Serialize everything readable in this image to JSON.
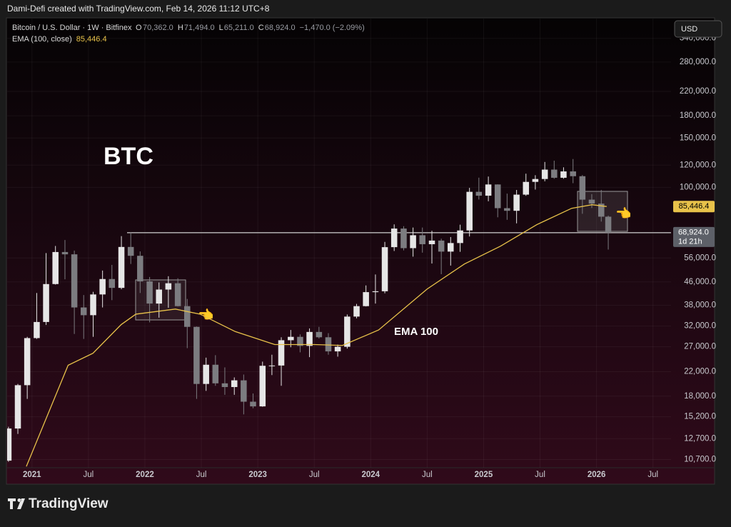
{
  "header": "Dami-Defi created with TradingView.com, Feb 14, 2026 11:12 UTC+8",
  "footer": "TradingView",
  "chart_data": {
    "type": "candlestick",
    "title": "BTC",
    "symbol": "Bitcoin / U.S. Dollar · 1W · Bitfinex",
    "ohlc_legend": [
      {
        "label": "O",
        "value": "70,362.0"
      },
      {
        "label": "H",
        "value": "71,494.0"
      },
      {
        "label": "L",
        "value": "65,211.0"
      },
      {
        "label": "C",
        "value": "68,924.0"
      }
    ],
    "change": "−1,470.0 (−2.09%)",
    "currency": "USD",
    "up_color": "#e6e6e6",
    "down_color": "#7c7c80",
    "x": [
      2020.792,
      2020.875,
      2020.958,
      2021.042,
      2021.125,
      2021.208,
      2021.292,
      2021.375,
      2021.458,
      2021.542,
      2021.625,
      2021.708,
      2021.792,
      2021.875,
      2021.958,
      2022.042,
      2022.125,
      2022.208,
      2022.292,
      2022.375,
      2022.458,
      2022.542,
      2022.625,
      2022.708,
      2022.792,
      2022.875,
      2022.958,
      2023.042,
      2023.125,
      2023.208,
      2023.292,
      2023.375,
      2023.458,
      2023.542,
      2023.625,
      2023.708,
      2023.792,
      2023.875,
      2023.958,
      2024.042,
      2024.125,
      2024.208,
      2024.292,
      2024.375,
      2024.458,
      2024.542,
      2024.625,
      2024.708,
      2024.792,
      2024.875,
      2024.958,
      2025.042,
      2025.125,
      2025.208,
      2025.292,
      2025.375,
      2025.458,
      2025.542,
      2025.625,
      2025.708,
      2025.792,
      2025.875,
      2025.958,
      2026.042,
      2026.104
    ],
    "open": [
      10600,
      13800,
      19700,
      29000,
      33100,
      45200,
      58800,
      57700,
      37300,
      35000,
      41500,
      47100,
      43800,
      61300,
      57000,
      46200,
      38500,
      43200,
      45500,
      37700,
      31800,
      19900,
      23300,
      20000,
      19400,
      20500,
      17200,
      16550,
      23100,
      23150,
      28500,
      29300,
      27200,
      30500,
      29200,
      26000,
      27000,
      34600,
      37700,
      42300,
      42600,
      61200,
      71300,
      60700,
      67500,
      62700,
      64600,
      59000,
      63300,
      70200,
      96400,
      93400,
      102400,
      84300,
      82500,
      94200,
      104600,
      107100,
      115700,
      108200,
      114000,
      109600,
      90400,
      87500,
      78600
    ],
    "high": [
      14000,
      19900,
      29300,
      42000,
      58300,
      61800,
      64900,
      59500,
      41300,
      42400,
      50500,
      52900,
      67000,
      69000,
      59100,
      47900,
      45800,
      48200,
      47400,
      40000,
      31900,
      24700,
      25200,
      22800,
      21000,
      21500,
      18400,
      23900,
      25300,
      29200,
      31000,
      29900,
      31400,
      31800,
      30200,
      27500,
      35200,
      38400,
      44700,
      48900,
      63900,
      73800,
      72700,
      71900,
      71900,
      70000,
      65600,
      66500,
      73600,
      99600,
      108300,
      109300,
      102500,
      95000,
      97900,
      111900,
      110500,
      123200,
      124500,
      117900,
      126200,
      110600,
      94600,
      97900,
      79300
    ],
    "low": [
      10500,
      13200,
      17600,
      28800,
      32300,
      45000,
      47000,
      30000,
      28800,
      29300,
      37300,
      39600,
      43300,
      53300,
      42000,
      33000,
      34300,
      37200,
      37600,
      26700,
      17600,
      18800,
      19600,
      18200,
      18200,
      15500,
      16300,
      16500,
      21400,
      19600,
      26900,
      25800,
      24800,
      28900,
      25300,
      24900,
      26600,
      34100,
      37600,
      38500,
      41900,
      59300,
      59600,
      56600,
      58500,
      53500,
      49000,
      52600,
      58900,
      66800,
      90500,
      89200,
      78200,
      76600,
      74400,
      93300,
      98200,
      105100,
      107300,
      107300,
      103500,
      80500,
      84400,
      75500,
      60000
    ],
    "close": [
      13800,
      19700,
      29000,
      33100,
      45200,
      58800,
      57700,
      37300,
      35000,
      41500,
      47100,
      43800,
      61300,
      57000,
      46200,
      38500,
      43200,
      45500,
      37700,
      31800,
      19900,
      23300,
      20000,
      19400,
      20500,
      17200,
      16550,
      23100,
      23150,
      28500,
      29300,
      27200,
      30500,
      29200,
      26000,
      27000,
      34600,
      37700,
      42300,
      42600,
      61200,
      71300,
      60700,
      67500,
      62700,
      64600,
      59000,
      63300,
      70200,
      96400,
      93400,
      102400,
      84300,
      82500,
      94200,
      104600,
      107100,
      115700,
      108200,
      114000,
      109600,
      90400,
      87500,
      78600,
      68924
    ],
    "series": [
      {
        "name": "EMA (100, close)",
        "label": "EMA 100",
        "color": "#e8c24a",
        "x": [
          2020.95,
          2021.32,
          2021.54,
          2021.79,
          2021.92,
          2022.27,
          2022.49,
          2022.8,
          2023.15,
          2023.5,
          2023.75,
          2024.07,
          2024.5,
          2024.83,
          2025.15,
          2025.47,
          2025.78,
          2025.96,
          2026.09
        ],
        "values": [
          10100,
          23200,
          25600,
          32400,
          35300,
          36800,
          35300,
          30600,
          27500,
          27500,
          27300,
          31000,
          43400,
          53300,
          61700,
          73600,
          84200,
          86700,
          85446.4
        ],
        "last_label": "85,446.4"
      }
    ],
    "price_line": {
      "value": 68924,
      "label": "68,924.0",
      "countdown": "1d 21h"
    },
    "log_scale": true,
    "grid": true,
    "ylim": [
      10000,
      400000
    ],
    "yticks": [
      {
        "value": 10700,
        "label": "10,700.0"
      },
      {
        "value": 12700,
        "label": "12,700.0"
      },
      {
        "value": 15200,
        "label": "15,200.0"
      },
      {
        "value": 18000,
        "label": "18,000.0"
      },
      {
        "value": 22000,
        "label": "22,000.0"
      },
      {
        "value": 27000,
        "label": "27,000.0"
      },
      {
        "value": 32000,
        "label": "32,000.0"
      },
      {
        "value": 38000,
        "label": "38,000.0"
      },
      {
        "value": 46000,
        "label": "46,000.0"
      },
      {
        "value": 56000,
        "label": "56,000.0"
      },
      {
        "value": 100000,
        "label": "100,000.0"
      },
      {
        "value": 120000,
        "label": "120,000.0"
      },
      {
        "value": 150000,
        "label": "150,000.0"
      },
      {
        "value": 180000,
        "label": "180,000.0"
      },
      {
        "value": 220000,
        "label": "220,000.0"
      },
      {
        "value": 280000,
        "label": "280,000.0"
      },
      {
        "value": 340000,
        "label": "340,000.0"
      }
    ],
    "xlim": [
      2020.78,
      2026.66
    ],
    "xticks": [
      2021,
      {
        "value": 2021.5,
        "label": "Jul"
      },
      2022,
      {
        "value": 2022.5,
        "label": "Jul"
      },
      2023,
      {
        "value": 2023.5,
        "label": "Jul"
      },
      2024,
      {
        "value": 2024.5,
        "label": "Jul"
      },
      2025,
      {
        "value": 2025.5,
        "label": "Jul"
      },
      2026,
      {
        "value": 2026.5,
        "label": "Jul"
      }
    ]
  }
}
